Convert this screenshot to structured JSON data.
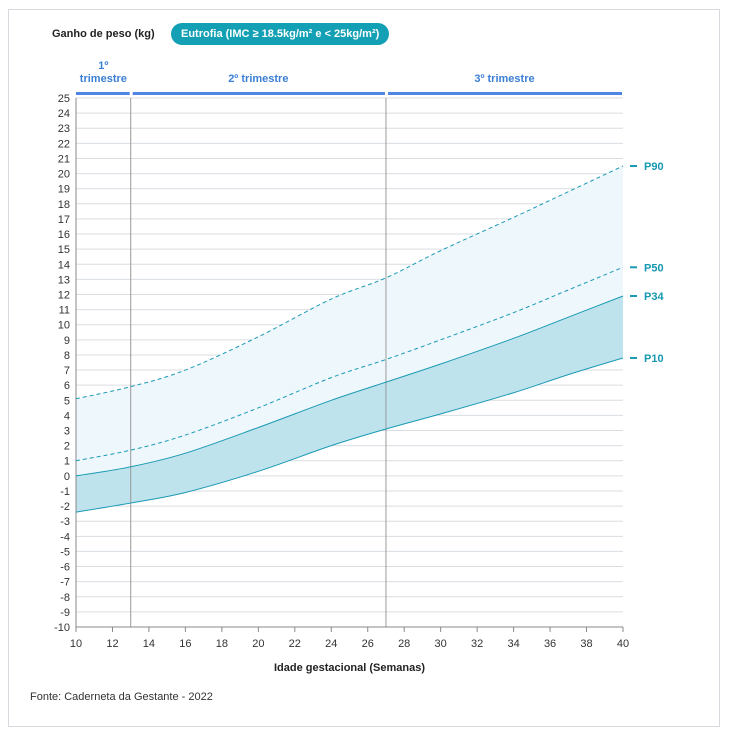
{
  "chart_data": {
    "type": "line",
    "ylabel": "Ganho de peso (kg)",
    "badge": "Eutrofia (IMC ≥ 18.5kg/m² e < 25kg/m²)",
    "xlabel": "Idade gestacional (Semanas)",
    "source": "Fonte: Caderneta da Gestante - 2022",
    "xlim": [
      10,
      40
    ],
    "ylim": [
      -10,
      25
    ],
    "x_ticks": [
      10,
      12,
      14,
      16,
      18,
      20,
      22,
      24,
      26,
      28,
      30,
      32,
      34,
      36,
      38,
      40
    ],
    "y_ticks": [
      -10,
      -9,
      -8,
      -7,
      -6,
      -5,
      -4,
      -3,
      -2,
      -1,
      0,
      1,
      2,
      3,
      4,
      5,
      6,
      7,
      8,
      9,
      10,
      11,
      12,
      13,
      14,
      15,
      16,
      17,
      18,
      19,
      20,
      21,
      22,
      23,
      24,
      25
    ],
    "grid": true,
    "trimesters": [
      {
        "label_lines": [
          "1º",
          "trimestre"
        ],
        "start": 10,
        "end": 13
      },
      {
        "label_lines": [
          "2º trimestre"
        ],
        "start": 13,
        "end": 27
      },
      {
        "label_lines": [
          "3º trimestre"
        ],
        "start": 27,
        "end": 40
      }
    ],
    "x": [
      10,
      13,
      16,
      20,
      24,
      27,
      30,
      34,
      37,
      40
    ],
    "series": [
      {
        "name": "P90",
        "style": "dashed",
        "values": [
          5.1,
          5.9,
          7.0,
          9.2,
          11.7,
          13.1,
          14.9,
          17.1,
          18.8,
          20.5
        ]
      },
      {
        "name": "P50",
        "style": "dashed",
        "values": [
          1.0,
          1.7,
          2.7,
          4.5,
          6.5,
          7.7,
          9.0,
          10.8,
          12.3,
          13.8
        ]
      },
      {
        "name": "P34",
        "style": "solid",
        "values": [
          0.0,
          0.6,
          1.5,
          3.2,
          5.0,
          6.2,
          7.4,
          9.1,
          10.5,
          11.9
        ]
      },
      {
        "name": "P10",
        "style": "solid",
        "values": [
          -2.4,
          -1.8,
          -1.1,
          0.3,
          2.0,
          3.1,
          4.1,
          5.5,
          6.7,
          7.8
        ]
      }
    ],
    "colors": {
      "line": "#1a9ab4",
      "band_light": "#eef7fc",
      "band_dark": "#bfe3ec",
      "trimester_bar": "#4f86e6",
      "trimester_text": "#3b7fd4",
      "grid": "#d9dde2",
      "axis": "#888888",
      "divider": "#9a9a9a"
    }
  }
}
